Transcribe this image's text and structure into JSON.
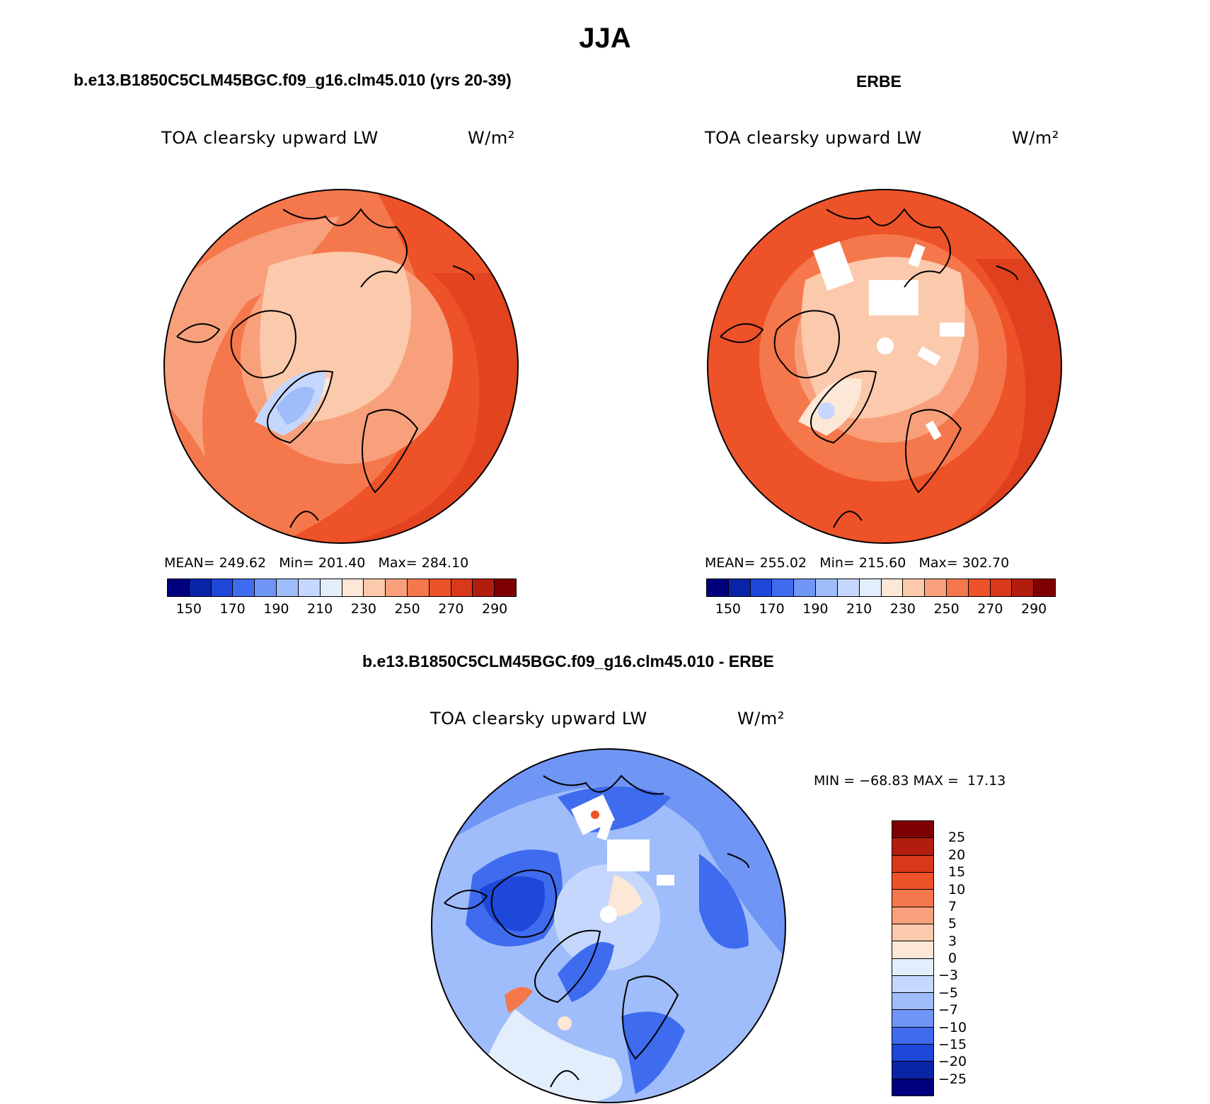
{
  "title": "JJA",
  "panels": {
    "model": {
      "subtitle": "b.e13.B1850C5CLM45BGC.f09_g16.clm45.010 (yrs 20-39)",
      "variable": "TOA clearsky upward LW",
      "units": "W/m²",
      "mean_label": "MEAN=",
      "mean": "249.62",
      "min_label": "Min=",
      "min": "201.40",
      "max_label": "Max=",
      "max": "284.10"
    },
    "obs": {
      "subtitle": "ERBE",
      "variable": "TOA clearsky upward LW",
      "units": "W/m²",
      "mean_label": "MEAN=",
      "mean": "255.02",
      "min_label": "Min=",
      "min": "215.60",
      "max_label": "Max=",
      "max": "302.70"
    },
    "diff": {
      "subtitle": "b.e13.B1850C5CLM45BGC.f09_g16.clm45.010 - ERBE",
      "variable": "TOA clearsky upward LW",
      "units": "W/m²",
      "minmax_text": "MIN = −68.83 MAX =  17.13"
    }
  },
  "colorbar_abs": {
    "labels": [
      "150",
      "170",
      "190",
      "210",
      "230",
      "250",
      "270",
      "290"
    ],
    "colors": [
      "#00007f",
      "#0a24a8",
      "#1e48d8",
      "#3f6bef",
      "#6f95f5",
      "#9fbdfa",
      "#c5d7fc",
      "#e3eefc",
      "#fde7d6",
      "#fbc9ab",
      "#f8a07c",
      "#f5774c",
      "#ed5228",
      "#d8391a",
      "#b21d10",
      "#7f0000"
    ]
  },
  "colorbar_diff": {
    "labels": [
      "25",
      "20",
      "15",
      "10",
      "7",
      "5",
      "3",
      "0",
      "−3",
      "−5",
      "−7",
      "−10",
      "−15",
      "−20",
      "−25"
    ],
    "colors": [
      "#7f0000",
      "#b21d10",
      "#d8391a",
      "#ed5228",
      "#f5774c",
      "#f8a07c",
      "#fbc9ab",
      "#fde7d6",
      "#e3eefc",
      "#c5d7fc",
      "#9fbdfa",
      "#6f95f5",
      "#3f6bef",
      "#1e48d8",
      "#0a24a8",
      "#00007f"
    ]
  }
}
